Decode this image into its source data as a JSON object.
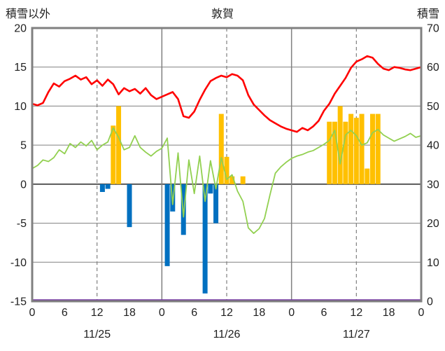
{
  "header": {
    "left_axis_title": "積雪以外",
    "title": "敦賀",
    "right_axis_title": "積雪"
  },
  "colors": {
    "red_line": "#FF0000",
    "green_line": "#92D050",
    "orange_bars": "#FFC000",
    "blue_bars": "#0070C0",
    "purple_line": "#7030A0",
    "grid": "#808080",
    "zero_line": "#595959",
    "border": "#808080",
    "text": "#1f1f1f"
  },
  "chart_data": {
    "type": "combo line+bar time series",
    "title": "敦賀",
    "left_axis": {
      "label": "積雪以外",
      "min": -15,
      "max": 20,
      "ticks": [
        20,
        15,
        10,
        5,
        0,
        -5,
        -10,
        -15
      ]
    },
    "right_axis": {
      "label": "積雪",
      "min": 0,
      "max": 70,
      "ticks": [
        70,
        60,
        50,
        40,
        30,
        20,
        10,
        0
      ]
    },
    "x_hours_total": 72,
    "x_tick_hours": [
      0,
      6,
      12,
      18,
      24,
      30,
      36,
      42,
      48,
      54,
      60,
      66,
      72
    ],
    "x_tick_labels": [
      "0",
      "6",
      "12",
      "18",
      "0",
      "6",
      "12",
      "18",
      "0",
      "6",
      "12",
      "18",
      "0"
    ],
    "day_labels": [
      {
        "hour": 12,
        "label": "11/25"
      },
      {
        "hour": 36,
        "label": "11/26"
      },
      {
        "hour": 60,
        "label": "11/27"
      }
    ],
    "gridlines": {
      "vertical_dashed_hours": [
        12,
        36,
        60
      ],
      "vertical_solid_hours": [
        24,
        48
      ]
    },
    "series": [
      {
        "name": "red-line",
        "type": "line",
        "axis": "left",
        "color": "#FF0000",
        "width": 2.6,
        "values": [
          10.3,
          10.1,
          10.4,
          11.8,
          12.9,
          12.5,
          13.2,
          13.5,
          13.9,
          13.4,
          13.7,
          12.8,
          13.3,
          12.6,
          13.4,
          12.8,
          11.5,
          12.3,
          11.9,
          12.2,
          11.6,
          12.3,
          11.4,
          10.9,
          11.2,
          11.5,
          11.8,
          10.9,
          8.7,
          8.5,
          9.3,
          10.8,
          12.1,
          13.2,
          13.6,
          13.9,
          13.7,
          14.1,
          13.9,
          13.3,
          11.4,
          10.2,
          9.5,
          8.8,
          8.2,
          7.8,
          7.4,
          7.1,
          6.9,
          6.7,
          7.2,
          6.9,
          7.4,
          8.1,
          9.4,
          10.3,
          11.6,
          12.6,
          13.6,
          14.9,
          15.7,
          16.0,
          16.4,
          16.2,
          15.4,
          14.8,
          14.6,
          15.0,
          14.9,
          14.7,
          14.6,
          14.8,
          15.0
        ]
      },
      {
        "name": "green-line",
        "type": "line",
        "axis": "left",
        "color": "#92D050",
        "width": 1.8,
        "values": [
          2.0,
          2.4,
          3.1,
          2.9,
          3.4,
          4.4,
          3.9,
          5.2,
          4.7,
          5.4,
          4.9,
          5.6,
          4.4,
          5.0,
          5.4,
          7.2,
          6.0,
          4.4,
          4.7,
          6.2,
          4.7,
          4.1,
          3.6,
          4.2,
          4.6,
          5.9,
          -2.6,
          4.0,
          -4.2,
          3.1,
          -1.2,
          3.6,
          -2.2,
          3.0,
          -0.6,
          3.4,
          0.6,
          1.2,
          -0.9,
          -2.2,
          -5.6,
          -6.3,
          -5.7,
          -4.4,
          -1.4,
          1.4,
          2.2,
          2.8,
          3.3,
          3.6,
          3.8,
          4.1,
          4.3,
          4.7,
          5.1,
          5.6,
          6.9,
          2.6,
          6.3,
          6.9,
          6.2,
          5.0,
          5.3,
          6.6,
          7.0,
          6.3,
          5.9,
          5.5,
          5.8,
          6.1,
          6.5,
          6.0,
          6.2
        ]
      },
      {
        "name": "orange-bars",
        "type": "bar",
        "axis": "left",
        "color": "#FFC000",
        "points": [
          [
            15,
            7.5
          ],
          [
            16,
            10
          ],
          [
            35,
            9
          ],
          [
            36,
            3.5
          ],
          [
            37,
            1
          ],
          [
            39,
            1
          ],
          [
            55,
            8
          ],
          [
            56,
            8
          ],
          [
            57,
            10
          ],
          [
            58,
            8
          ],
          [
            59,
            9
          ],
          [
            60,
            8.5
          ],
          [
            61,
            9
          ],
          [
            62,
            2
          ],
          [
            63,
            9
          ],
          [
            64,
            9
          ]
        ]
      },
      {
        "name": "blue-bars",
        "type": "bar",
        "axis": "left",
        "color": "#0070C0",
        "points": [
          [
            13,
            -1
          ],
          [
            14,
            -0.6
          ],
          [
            18,
            -5.5
          ],
          [
            25,
            -10.5
          ],
          [
            26,
            -3.5
          ],
          [
            28,
            -6.5
          ],
          [
            32,
            -14
          ],
          [
            33,
            -1.2
          ],
          [
            34,
            -5
          ]
        ]
      },
      {
        "name": "purple-line",
        "type": "line",
        "axis": "right",
        "color": "#7030A0",
        "width": 2.4,
        "points": [
          [
            0,
            0
          ],
          [
            72,
            0
          ]
        ]
      }
    ]
  }
}
